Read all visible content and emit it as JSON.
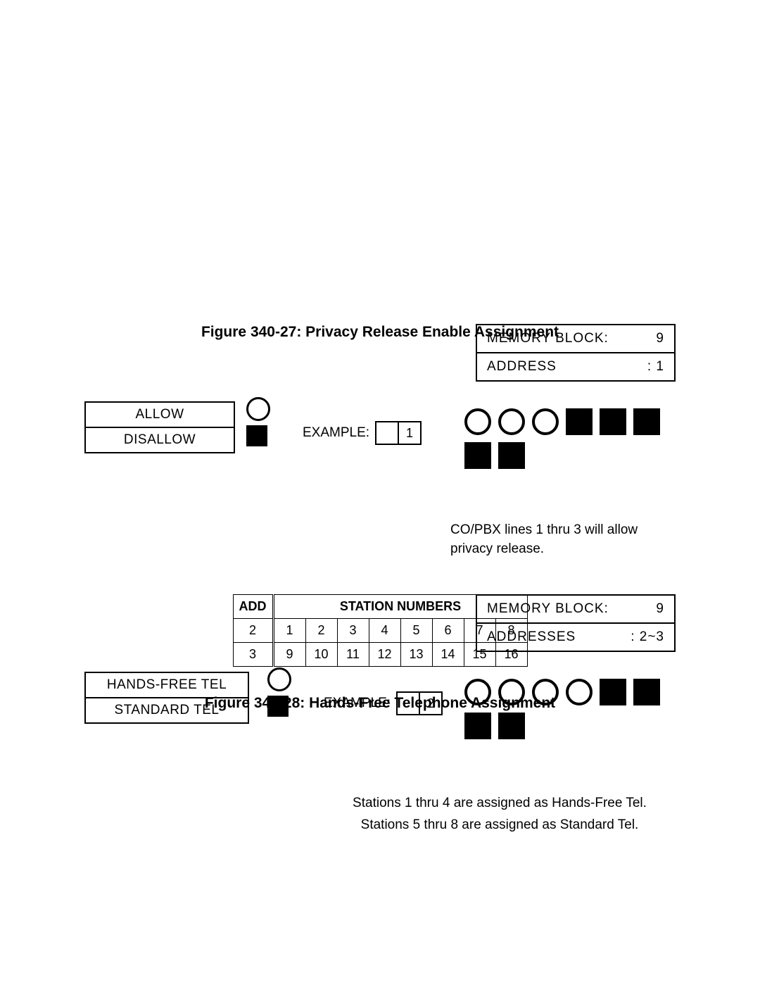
{
  "figure1": {
    "memory_block_label": "MEMORY BLOCK:",
    "memory_block_value": "9",
    "address_label": "ADDRESS",
    "address_value": ": 1",
    "legend": [
      {
        "label": "ALLOW",
        "symbol": "circle"
      },
      {
        "label": "DISALLOW",
        "symbol": "square"
      }
    ],
    "example_label": "EXAMPLE:",
    "example_cells": [
      "",
      "1"
    ],
    "lamps": {
      "row1": [
        "circle",
        "circle",
        "circle",
        "square",
        "square",
        "square"
      ],
      "row2": [
        "square",
        "square"
      ]
    },
    "note": "CO/PBX lines 1 thru 3 will allow privacy release.",
    "caption": "Figure 340-27: Privacy Release Enable Assignment"
  },
  "figure2": {
    "memory_block_label": "MEMORY BLOCK:",
    "memory_block_value": "9",
    "address_label": "ADDRESSES",
    "address_value": ": 2~3",
    "legend": [
      {
        "label": "HANDS-FREE TEL",
        "symbol": "circle"
      },
      {
        "label": "STANDARD TEL",
        "symbol": "square"
      }
    ],
    "example_label": "EXAMPLE:",
    "example_cells": [
      "",
      "2"
    ],
    "lamps": {
      "row1": [
        "circle",
        "circle",
        "circle",
        "circle",
        "square",
        "square"
      ],
      "row2": [
        "square",
        "square"
      ]
    },
    "note_line1": "Stations 1 thru 4 are assigned as Hands-Free Tel.",
    "note_line2": "Stations 5 thru 8 are assigned as Standard Tel.",
    "station_table": {
      "headers": [
        "ADD",
        "STATION NUMBERS"
      ],
      "station_count": 8,
      "rows": [
        {
          "add": "2",
          "stations": [
            "1",
            "2",
            "3",
            "4",
            "5",
            "6",
            "7",
            "8"
          ]
        },
        {
          "add": "3",
          "stations": [
            "9",
            "10",
            "11",
            "12",
            "13",
            "14",
            "15",
            "16"
          ]
        }
      ]
    },
    "caption": "Figure 340-28: Hands-Free Telephone Assignment"
  },
  "colors": {
    "black": "#000000",
    "white": "#ffffff"
  }
}
